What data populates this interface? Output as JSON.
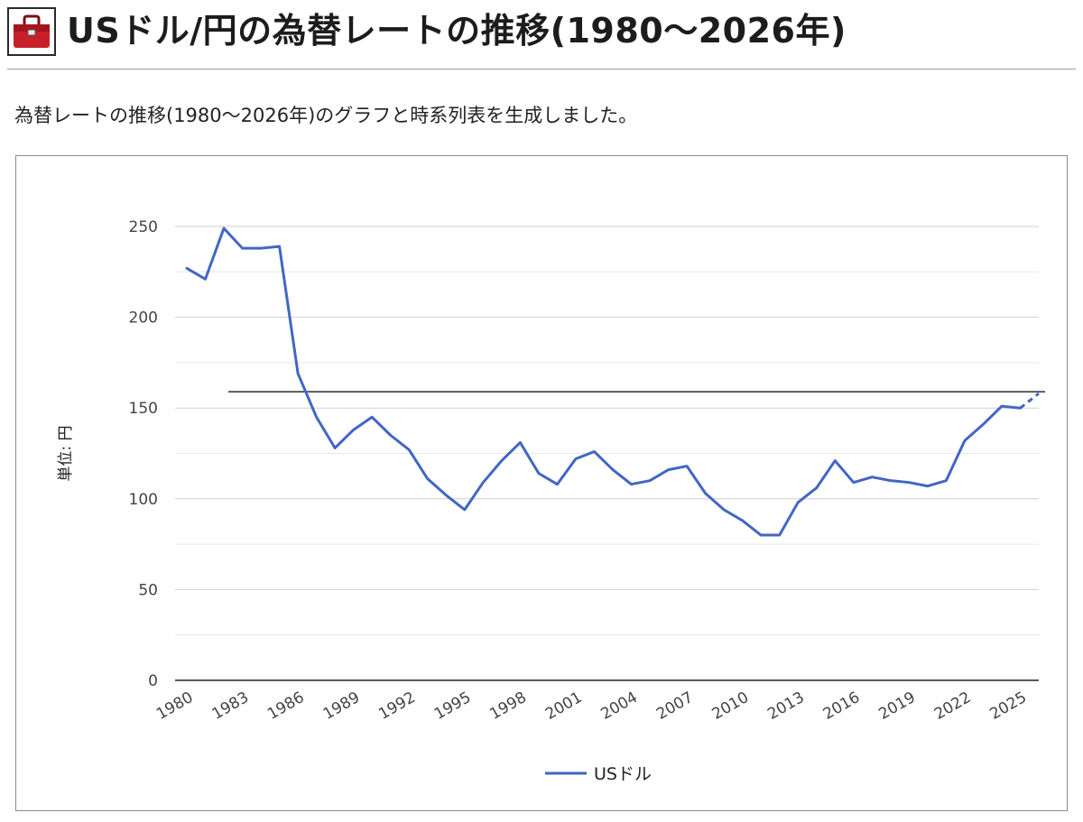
{
  "header": {
    "icon": "toolbox-icon",
    "title": "USドル/円の為替レートの推移(1980〜2026年)"
  },
  "intro_text": "為替レートの推移(1980〜2026年)のグラフと時系列表を生成しました。",
  "chart_data": {
    "type": "line",
    "title": "",
    "xlabel": "",
    "ylabel": "単位: 円",
    "ylim": [
      0,
      250
    ],
    "yticks": [
      0,
      50,
      100,
      150,
      200,
      250
    ],
    "x": [
      1980,
      1981,
      1982,
      1983,
      1984,
      1985,
      1986,
      1987,
      1988,
      1989,
      1990,
      1991,
      1992,
      1993,
      1994,
      1995,
      1996,
      1997,
      1998,
      1999,
      2000,
      2001,
      2002,
      2003,
      2004,
      2005,
      2006,
      2007,
      2008,
      2009,
      2010,
      2011,
      2012,
      2013,
      2014,
      2015,
      2016,
      2017,
      2018,
      2019,
      2020,
      2021,
      2022,
      2023,
      2024,
      2025,
      2026
    ],
    "xticks": [
      "1980",
      "1983",
      "1986",
      "1989",
      "1992",
      "1995",
      "1998",
      "2001",
      "2004",
      "2007",
      "2010",
      "2013",
      "2016",
      "2019",
      "2022",
      "2025"
    ],
    "grid": true,
    "legend_position": "bottom",
    "reference_line": 159,
    "series": [
      {
        "name": "USドル",
        "color": "#4266c4",
        "values": [
          227,
          221,
          249,
          238,
          238,
          239,
          169,
          145,
          128,
          138,
          145,
          135,
          127,
          111,
          102,
          94,
          109,
          121,
          131,
          114,
          108,
          122,
          126,
          116,
          108,
          110,
          116,
          118,
          103,
          94,
          88,
          80,
          80,
          98,
          106,
          121,
          109,
          112,
          110,
          109,
          107,
          110,
          132,
          141,
          151,
          150,
          158
        ],
        "dashed_from": 2025
      }
    ]
  }
}
